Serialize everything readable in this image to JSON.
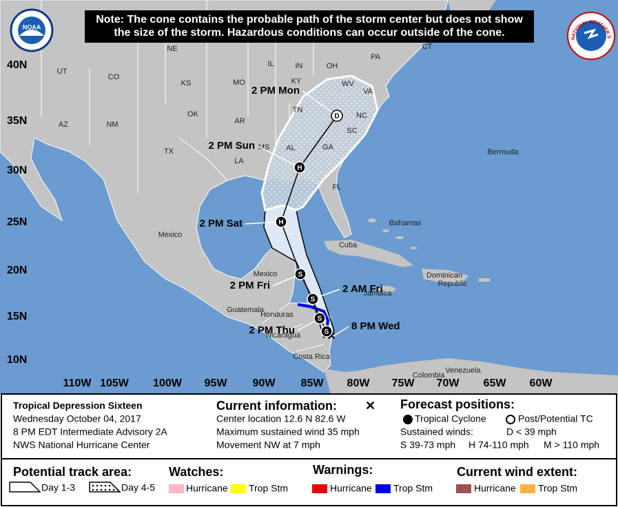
{
  "note": [
    "Note: The cone contains the probable path of the storm center but does not show",
    "the size of the storm. Hazardous conditions can occur outside of the cone."
  ],
  "logos": {
    "noaa": "NOAA",
    "nws": "NATIONAL WEATHER SERVICE"
  },
  "map": {
    "lat_labels": [
      "40N",
      "35N",
      "30N",
      "25N",
      "20N",
      "15N",
      "10N"
    ],
    "lon_labels": [
      "110W",
      "105W",
      "100W",
      "95W",
      "90W",
      "85W",
      "80W",
      "75W",
      "70W",
      "65W",
      "60W"
    ],
    "places": [
      "NE",
      "IL",
      "IN",
      "OH",
      "PA",
      "CT",
      "UT",
      "CO",
      "KS",
      "MO",
      "KY",
      "WV",
      "VA",
      "TN",
      "NC",
      "SC",
      "AZ",
      "NM",
      "OK",
      "AR",
      "AL",
      "GA",
      "MS",
      "TX",
      "LA",
      "FL",
      "Bermuda",
      "Mexico",
      "Bahamas",
      "Cuba",
      "Mexico",
      "Dominican",
      "Republic",
      "Jamaica",
      "Guatemala",
      "Honduras",
      "Nicaragua",
      "Costa Rica",
      "Colombia",
      "Venezuela"
    ],
    "forecast_points": [
      {
        "marker": "D",
        "label": "2 PM Mon"
      },
      {
        "marker": "H",
        "label": "2 PM Sun"
      },
      {
        "marker": "H",
        "label": "2 PM Sat"
      },
      {
        "marker": "S",
        "label": "2 PM Fri"
      },
      {
        "marker": "S",
        "label": "2 AM Fri"
      },
      {
        "marker": "S",
        "label": "2 PM Thu"
      },
      {
        "marker": "S",
        "label": null
      }
    ],
    "current_label": "8 PM Wed"
  },
  "info": {
    "storm": [
      "Tropical Depression Sixteen",
      "Wednesday October 04, 2017",
      "8 PM EDT Intermediate Advisory 2A",
      "NWS National Hurricane Center"
    ],
    "current": {
      "title": "Current information:",
      "lines": [
        "Center location 12.6 N 82.6 W",
        "Maximum sustained wind 35 mph",
        "Movement NW at 7 mph"
      ]
    },
    "forecast": {
      "title": "Forecast positions:",
      "tropical": "Tropical Cyclone",
      "post": "Post/Potential TC",
      "winds": "Sustained winds:",
      "d": "D < 39 mph",
      "s": "S 39-73 mph",
      "h": "H 74-110 mph",
      "m": "M > 110 mph"
    }
  },
  "legend": {
    "track": {
      "title": "Potential track area:",
      "day13": "Day 1-3",
      "day45": "Day 4-5"
    },
    "watches": {
      "title": "Watches:",
      "hurricane": "Hurricane",
      "trop": "Trop Stm"
    },
    "warnings": {
      "title": "Warnings:",
      "hurricane": "Hurricane",
      "trop": "Trop Stm"
    },
    "wind": {
      "title": "Current wind extent:",
      "hurricane": "Hurricane",
      "trop": "Trop Stm"
    }
  }
}
